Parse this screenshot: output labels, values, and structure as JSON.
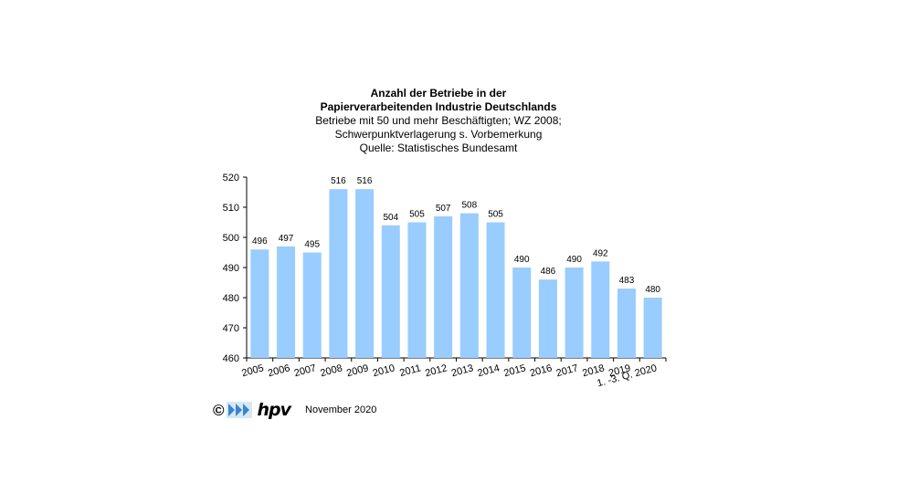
{
  "header": {
    "title_line1": "Anzahl der Betriebe in der",
    "title_line2": "Papierverarbeitenden Industrie Deutschlands",
    "subtitle_line1": "Betriebe mit 50 und mehr Beschäftigten;  WZ 2008;",
    "subtitle_line2": "Schwerpunktverlagerung   s. Vorbemerkung",
    "source": "Quelle:  Statistisches Bundesamt"
  },
  "footer": {
    "copyright": "©",
    "logo_text": "hpv",
    "date": "November 2020"
  },
  "chart_data": {
    "type": "bar",
    "categories": [
      "2005",
      "2006",
      "2007",
      "2008",
      "2009",
      "2010",
      "2011",
      "2012",
      "2013",
      "2014",
      "2015",
      "2016",
      "2017",
      "2018",
      "2019",
      "2020"
    ],
    "category_labels": [
      "2005",
      "2006",
      "2007",
      "2008",
      "2009",
      "2010",
      "2011",
      "2012",
      "2013",
      "2014",
      "2015",
      "2016",
      "2017",
      "2018",
      "2019",
      "1. -3. Q. 2020"
    ],
    "values": [
      496,
      497,
      495,
      516,
      516,
      504,
      505,
      507,
      508,
      505,
      490,
      486,
      490,
      492,
      483,
      480
    ],
    "ylim": [
      460,
      520
    ],
    "yticks": [
      460,
      470,
      480,
      490,
      500,
      510,
      520
    ],
    "bar_color": "#99ccff",
    "grid": false
  }
}
